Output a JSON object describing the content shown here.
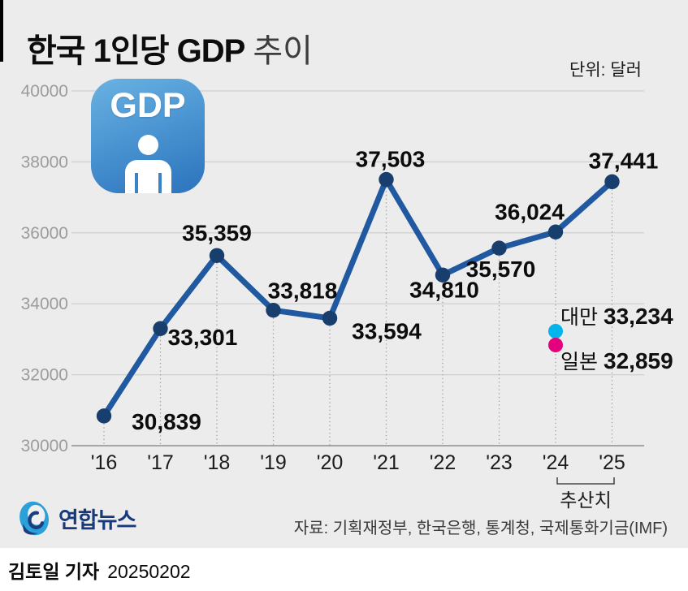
{
  "header": {
    "title_main": "한국 1인당 GDP",
    "title_sub": "추이",
    "unit_label": "단위: 달러"
  },
  "gdp_badge": {
    "text": "GDP"
  },
  "chart_data": {
    "type": "line",
    "title": "한국 1인당 GDP 추이",
    "unit": "달러",
    "categories": [
      "'16",
      "'17",
      "'18",
      "'19",
      "'20",
      "'21",
      "'22",
      "'23",
      "'24",
      "'25"
    ],
    "values": [
      30839,
      33301,
      35359,
      33818,
      33594,
      37503,
      34810,
      35570,
      36024,
      37441
    ],
    "value_labels": [
      "30,839",
      "33,301",
      "35,359",
      "33,818",
      "33,594",
      "37,503",
      "34,810",
      "35,570",
      "36,024",
      "37,441"
    ],
    "ylim": [
      30000,
      40000
    ],
    "yticks": [
      40000,
      38000,
      36000,
      34000,
      32000,
      30000
    ],
    "grid": true,
    "legend": "none",
    "line_color": "#2159a1",
    "point_color": "#173e6d",
    "estimate": {
      "label": "추산치",
      "from_category": "'24",
      "to_category": "'25"
    },
    "annotations": [
      {
        "name": "대만",
        "value": 33234,
        "value_label": "33,234",
        "dot_color": "#00b5ec"
      },
      {
        "name": "일본",
        "value": 32859,
        "value_label": "32,859",
        "dot_color": "#e3017e"
      }
    ]
  },
  "footer": {
    "source": "자료: 기획재정부, 한국은행, 통계청, 국제통화기금(IMF)",
    "logo_text": "연합뉴스",
    "byline": "김토일 기자",
    "date": "20250202"
  }
}
